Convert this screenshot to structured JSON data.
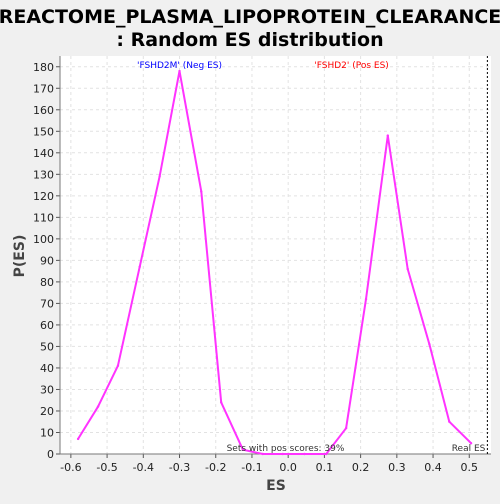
{
  "chart_data": {
    "type": "line",
    "title_line1": "REACTOME_PLASMA_LIPOPROTEIN_CLEARANCE",
    "title_line2": ": Random ES distribution",
    "xlabel": "ES",
    "ylabel": "P(ES)",
    "xlim": [
      -0.63,
      0.56
    ],
    "ylim": [
      0,
      185
    ],
    "x_ticks": [
      -0.6,
      -0.5,
      -0.4,
      -0.3,
      -0.2,
      -0.1,
      0.0,
      0.1,
      0.2,
      0.3,
      0.4,
      0.5
    ],
    "x_tick_labels": [
      "-0.6",
      "-0.5",
      "-0.4",
      "-0.3",
      "-0.2",
      "-0.1",
      "0.0",
      "0.1",
      "0.2",
      "0.3",
      "0.4",
      "0.5"
    ],
    "y_ticks": [
      0,
      10,
      20,
      30,
      40,
      50,
      60,
      70,
      80,
      90,
      100,
      110,
      120,
      130,
      140,
      150,
      160,
      170,
      180
    ],
    "y_tick_labels": [
      "0",
      "10",
      "20",
      "30",
      "40",
      "50",
      "60",
      "70",
      "80",
      "90",
      "100",
      "110",
      "120",
      "130",
      "140",
      "150",
      "160",
      "170",
      "180"
    ],
    "grid": true,
    "series_color": "#ff33ff",
    "x": [
      -0.58,
      -0.525,
      -0.47,
      -0.41,
      -0.355,
      -0.3,
      -0.24,
      -0.185,
      -0.125,
      -0.07,
      -0.015,
      0.045,
      0.105,
      0.16,
      0.215,
      0.275,
      0.33,
      0.39,
      0.445,
      0.505
    ],
    "values": [
      7,
      22,
      41,
      87,
      129,
      178,
      122,
      24,
      2,
      0,
      0,
      0,
      0,
      12,
      72,
      148,
      86,
      51,
      15,
      5
    ],
    "annotations": {
      "neg_label": "'FSHD2M' (Neg ES)",
      "neg_color": "#0000ff",
      "pos_label": "'FSHD2' (Pos ES)",
      "pos_color": "#ff0000",
      "pos_scores": "Sets with pos scores: 39%",
      "real_es": "Real ES",
      "real_es_value": 0.55
    }
  }
}
